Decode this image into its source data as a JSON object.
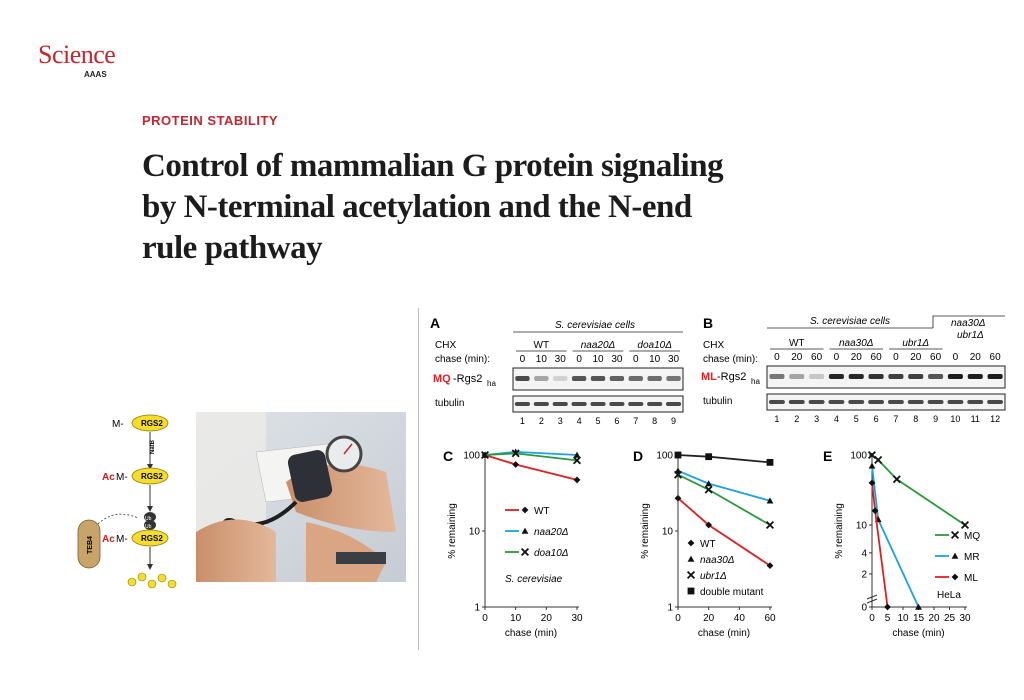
{
  "logo": {
    "name": "Science",
    "sub": "AAAS"
  },
  "kicker": "PROTEIN STABILITY",
  "title": "Control of mammalian G protein signaling by N-terminal acetylation and the N-end rule pathway",
  "schematic": {
    "m_label": "M-",
    "protein": "RGS2",
    "natb": "NatB",
    "ac": "Ac",
    "m": "M-",
    "teb4": "TEB4",
    "ub": "Ub"
  },
  "blots": {
    "A": {
      "panel": "A",
      "species": "S. cerevisiae cells",
      "chx": "CHX",
      "chase": "chase (min):",
      "groups": [
        "WT",
        "naa20Δ",
        "doa10Δ"
      ],
      "times": [
        "0",
        "10",
        "30",
        "0",
        "10",
        "30",
        "0",
        "10",
        "30"
      ],
      "protein_prefix": "MQ",
      "protein_name": "-Rgs2",
      "protein_sub": "ha",
      "tubulin": "tubulin",
      "lanes": [
        "1",
        "2",
        "3",
        "4",
        "5",
        "6",
        "7",
        "8",
        "9"
      ]
    },
    "B": {
      "panel": "B",
      "species": "S. cerevisiae cells",
      "chx": "CHX",
      "chase": "chase (min):",
      "groups": [
        "WT",
        "naa30Δ",
        "ubr1Δ"
      ],
      "group4_line1": "naa30Δ",
      "group4_line2": "ubr1Δ",
      "times": [
        "0",
        "20",
        "60",
        "0",
        "20",
        "60",
        "0",
        "20",
        "60",
        "0",
        "20",
        "60"
      ],
      "protein_prefix": "ML",
      "protein_name": "-Rgs2",
      "protein_sub": "ha",
      "tubulin": "tubulin",
      "lanes": [
        "1",
        "2",
        "3",
        "4",
        "5",
        "6",
        "7",
        "8",
        "9",
        "10",
        "11",
        "12"
      ]
    }
  },
  "chart_data": [
    {
      "panel": "C",
      "type": "line",
      "ylabel": "% remaining",
      "xlabel": "chase (min)",
      "yscale": "log",
      "ylim": [
        1,
        100
      ],
      "yticks": [
        "100",
        "10",
        "1"
      ],
      "xticks": [
        "0",
        "10",
        "20",
        "30"
      ],
      "x": [
        0,
        10,
        30
      ],
      "series": [
        {
          "name": "WT",
          "color": "#e02020",
          "marker": "diamond",
          "values": [
            100,
            75,
            47
          ]
        },
        {
          "name": "naa20Δ",
          "color": "#1aa3e0",
          "marker": "triangle",
          "values": [
            100,
            110,
            100
          ]
        },
        {
          "name": "doa10Δ",
          "color": "#2a9a3a",
          "marker": "cross",
          "values": [
            100,
            105,
            85
          ]
        }
      ],
      "annotation": "S. cerevisiae"
    },
    {
      "panel": "D",
      "type": "line",
      "ylabel": "% remaining",
      "xlabel": "chase (min)",
      "yscale": "log",
      "ylim": [
        1,
        100
      ],
      "yticks": [
        "100",
        "10",
        "1"
      ],
      "xticks": [
        "0",
        "20",
        "40",
        "60"
      ],
      "x": [
        0,
        20,
        60
      ],
      "series": [
        {
          "name": "WT",
          "color": "#e02020",
          "marker": "diamond",
          "values": [
            27,
            12,
            3.5
          ]
        },
        {
          "name": "naa30Δ",
          "color": "#1aa3e0",
          "marker": "triangle",
          "values": [
            62,
            42,
            25
          ]
        },
        {
          "name": "ubr1Δ",
          "color": "#2a9a3a",
          "marker": "cross",
          "values": [
            55,
            35,
            12
          ]
        },
        {
          "name": "double mutant",
          "color": "#222222",
          "marker": "square",
          "values": [
            100,
            95,
            80
          ]
        }
      ]
    },
    {
      "panel": "E",
      "type": "line",
      "ylabel": "% remaining",
      "xlabel": "chase (min)",
      "yscale": "log-broken",
      "ylim": [
        0,
        100
      ],
      "yticks": [
        "100",
        "10",
        "4",
        "2",
        "0"
      ],
      "xticks": [
        "0",
        "5",
        "10",
        "15",
        "20",
        "25",
        "30"
      ],
      "series": [
        {
          "name": "MQ",
          "color": "#2a9a3a",
          "marker": "cross",
          "x": [
            0,
            2,
            8,
            30
          ],
          "values": [
            100,
            85,
            45,
            10
          ]
        },
        {
          "name": "MR",
          "color": "#1aa3e0",
          "marker": "triangle",
          "x": [
            0,
            2,
            15
          ],
          "values": [
            70,
            12,
            0
          ]
        },
        {
          "name": "ML",
          "color": "#e02020",
          "marker": "diamond",
          "x": [
            0,
            1,
            5
          ],
          "values": [
            40,
            16,
            0
          ]
        }
      ],
      "annotation": "HeLa"
    }
  ]
}
